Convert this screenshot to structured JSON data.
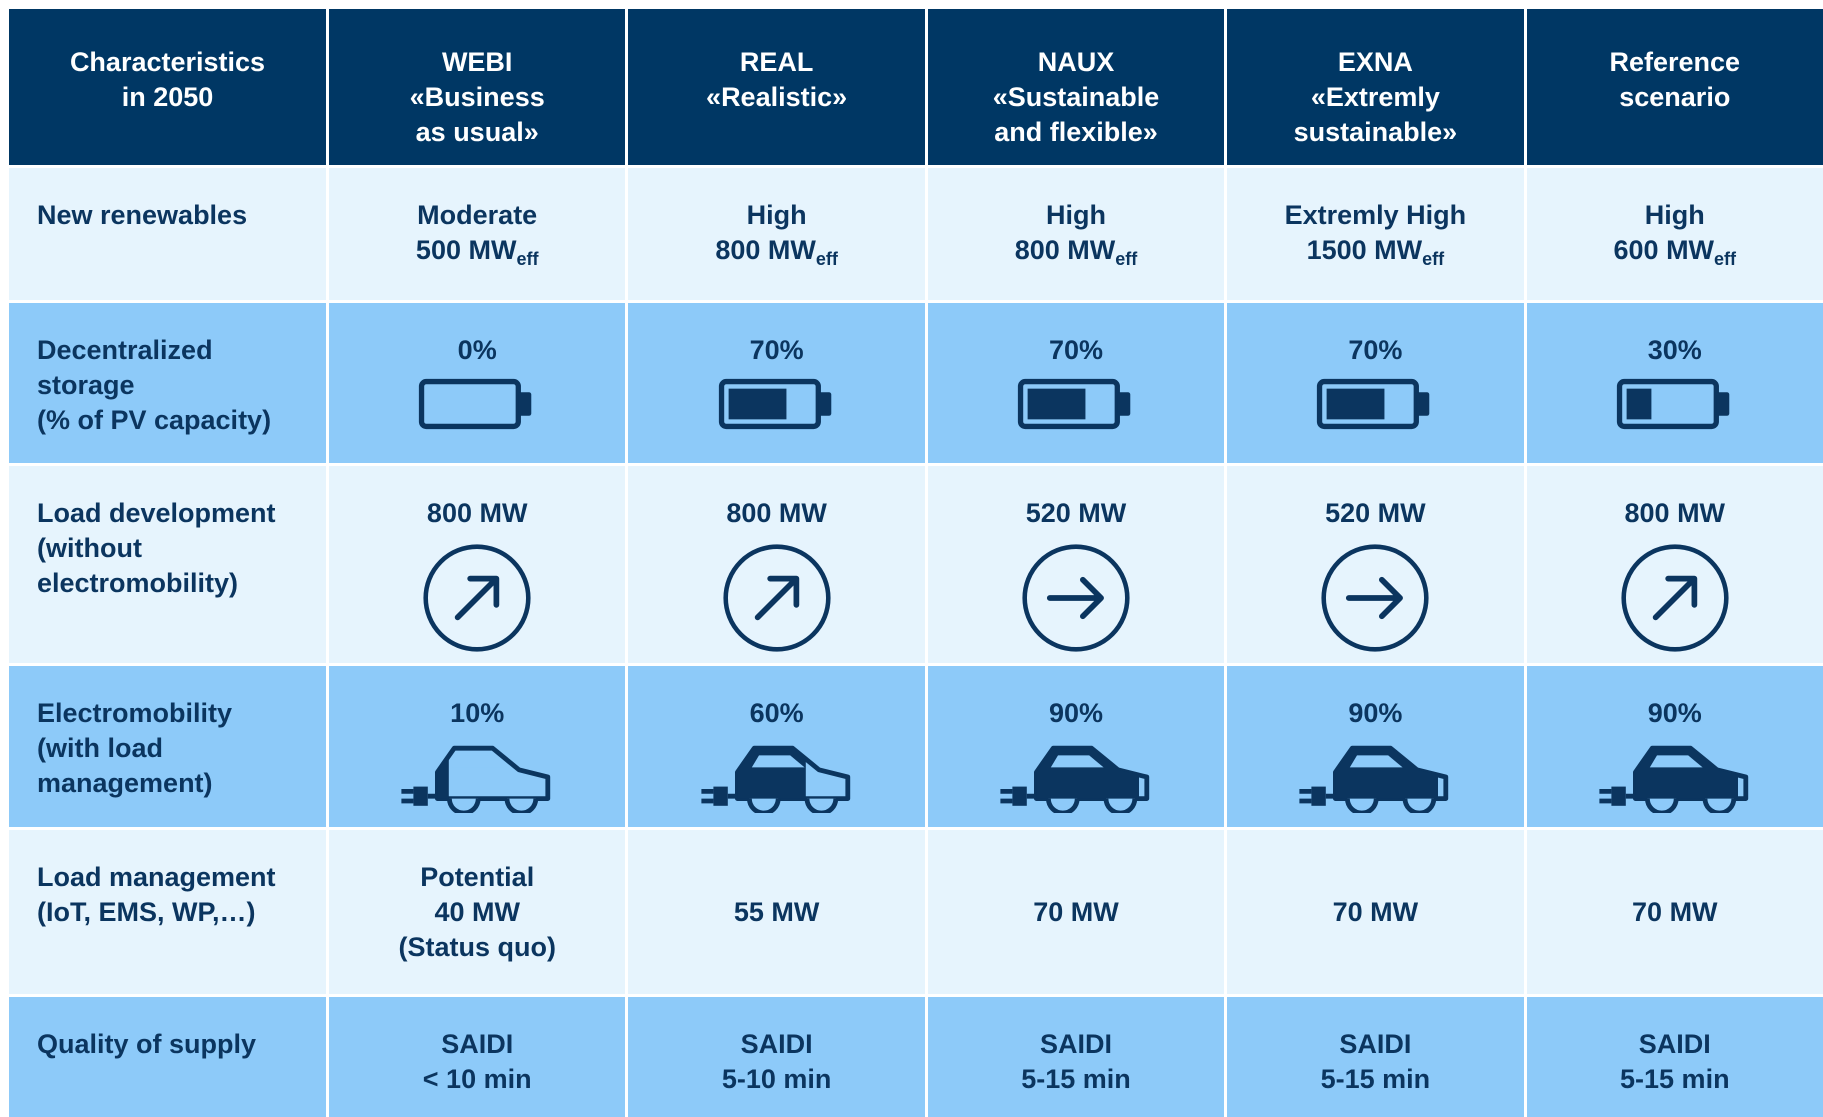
{
  "header": [
    [
      "Characteristics",
      "in 2050"
    ],
    [
      "WEBI",
      "«Business",
      "as usual»"
    ],
    [
      "REAL",
      "«Realistic»"
    ],
    [
      "NAUX",
      "«Sustainable",
      "and flexible»"
    ],
    [
      "EXNA",
      "«Extremly",
      "sustainable»"
    ],
    [
      "Reference",
      "scenario"
    ]
  ],
  "rows": [
    {
      "label": [
        "New renewables"
      ],
      "cells": [
        {
          "lines": [
            "Moderate",
            "500 MW"
          ],
          "sub": "eff"
        },
        {
          "lines": [
            "High",
            "800 MW"
          ],
          "sub": "eff"
        },
        {
          "lines": [
            "High",
            "800 MW"
          ],
          "sub": "eff"
        },
        {
          "lines": [
            "Extremly High",
            "1500 MW"
          ],
          "sub": "eff"
        },
        {
          "lines": [
            "High",
            "600 MW"
          ],
          "sub": "eff"
        }
      ]
    },
    {
      "label": [
        "Decentralized",
        "storage",
        "(% of PV capacity)"
      ],
      "cells": [
        {
          "lines": [
            "0%"
          ]
        },
        {
          "lines": [
            "70%"
          ]
        },
        {
          "lines": [
            "70%"
          ]
        },
        {
          "lines": [
            "70%"
          ]
        },
        {
          "lines": [
            "30%"
          ]
        }
      ]
    },
    {
      "label": [
        "Load development",
        "(without",
        "electromobility)"
      ],
      "cells": [
        {
          "lines": [
            "800 MW"
          ]
        },
        {
          "lines": [
            "800 MW"
          ]
        },
        {
          "lines": [
            "520 MW"
          ]
        },
        {
          "lines": [
            "520 MW"
          ]
        },
        {
          "lines": [
            "800 MW"
          ]
        }
      ]
    },
    {
      "label": [
        "Electromobility",
        "(with load",
        "management)"
      ],
      "cells": [
        {
          "lines": [
            "10%"
          ]
        },
        {
          "lines": [
            "60%"
          ]
        },
        {
          "lines": [
            "90%"
          ]
        },
        {
          "lines": [
            "90%"
          ]
        },
        {
          "lines": [
            "90%"
          ]
        }
      ]
    },
    {
      "label": [
        "Load management",
        "(IoT, EMS, WP,…)"
      ],
      "cells": [
        {
          "lines": [
            "Potential",
            "40 MW",
            "(Status quo)"
          ]
        },
        {
          "lines": [
            "55 MW"
          ]
        },
        {
          "lines": [
            "70 MW"
          ]
        },
        {
          "lines": [
            "70 MW"
          ]
        },
        {
          "lines": [
            "70 MW"
          ]
        }
      ]
    },
    {
      "label": [
        "Quality of supply"
      ],
      "cells": [
        {
          "lines": [
            "SAIDI",
            "< 10 min"
          ]
        },
        {
          "lines": [
            "SAIDI",
            "5-10 min"
          ]
        },
        {
          "lines": [
            "SAIDI",
            "5-15 min"
          ]
        },
        {
          "lines": [
            "SAIDI",
            "5-15 min"
          ]
        },
        {
          "lines": [
            "SAIDI",
            "5-15 min"
          ]
        }
      ]
    }
  ]
}
